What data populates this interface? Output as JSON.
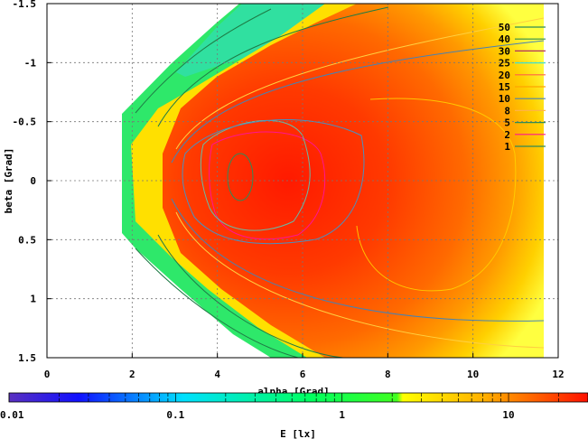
{
  "chart_data": {
    "type": "heatmap",
    "title": "",
    "xlabel": "alpha [Grad]",
    "ylabel": "beta [Grad]",
    "xlim": [
      0,
      12
    ],
    "ylim": [
      1.5,
      -1.5
    ],
    "xticks": [
      "0",
      "2",
      "4",
      "6",
      "8",
      "10",
      "12"
    ],
    "xtick_values": [
      0,
      2,
      4,
      6,
      8,
      10,
      12
    ],
    "yticks": [
      "-1.5",
      "-1",
      "-0.5",
      "0",
      "0.5",
      "1",
      "1.5"
    ],
    "ytick_values": [
      -1.5,
      -1,
      -0.5,
      0,
      0.5,
      1,
      1.5
    ],
    "grid": true,
    "legend_position": "top-right",
    "contour_levels": [
      {
        "label": "50",
        "color": "#2e8b57"
      },
      {
        "label": "40",
        "color": "#2e8b57"
      },
      {
        "label": "30",
        "color": "#b03060"
      },
      {
        "label": "25",
        "color": "#40e0d0"
      },
      {
        "label": "20",
        "color": "#ff6347"
      },
      {
        "label": "15",
        "color": "#ffa500"
      },
      {
        "label": "10",
        "color": "#4682b4"
      },
      {
        "label": "8",
        "color": "#ffb347"
      },
      {
        "label": "5",
        "color": "#2e8b57"
      },
      {
        "label": "2",
        "color": "#ff1493"
      },
      {
        "label": "1",
        "color": "#2e8b57"
      }
    ],
    "colorbar": {
      "label": "E [lx]",
      "scale": "log",
      "range": [
        0.01,
        30
      ],
      "ticks": [
        "0.01",
        "0.1",
        "1",
        "10"
      ],
      "tick_values": [
        0.01,
        0.1,
        1,
        10
      ]
    },
    "peak": {
      "alpha": 4.7,
      "beta": 0.0
    }
  }
}
